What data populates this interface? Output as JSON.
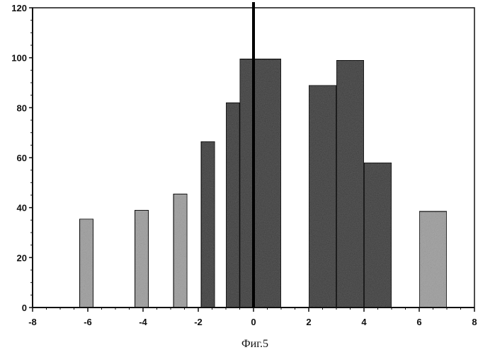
{
  "chart_data": {
    "type": "bar",
    "title": "",
    "xlabel": "",
    "ylabel": "",
    "xlim": [
      -8,
      8
    ],
    "ylim": [
      0,
      120
    ],
    "x_ticks": [
      -8,
      -6,
      -4,
      -2,
      0,
      2,
      4,
      6,
      8
    ],
    "y_ticks": [
      0,
      20,
      40,
      60,
      80,
      100,
      120
    ],
    "grid": false,
    "legend": "none",
    "series": [
      {
        "bars": [
          {
            "x_start": -6.3,
            "x_end": -5.8,
            "value": 35.5,
            "shade": "light"
          },
          {
            "x_start": -4.3,
            "x_end": -3.8,
            "value": 39,
            "shade": "light"
          },
          {
            "x_start": -2.9,
            "x_end": -2.4,
            "value": 45.5,
            "shade": "light"
          },
          {
            "x_start": -1.9,
            "x_end": -1.4,
            "value": 66.5,
            "shade": "dark"
          },
          {
            "x_start": -1.0,
            "x_end": -0.5,
            "value": 82,
            "shade": "dark"
          },
          {
            "x_start": -0.5,
            "x_end": 0.0,
            "value": 99.5,
            "shade": "dark"
          },
          {
            "x_start": 0.0,
            "x_end": 1.0,
            "value": 99.5,
            "shade": "dark"
          },
          {
            "x_start": 2.0,
            "x_end": 3.0,
            "value": 89,
            "shade": "dark"
          },
          {
            "x_start": 3.0,
            "x_end": 4.0,
            "value": 99,
            "shade": "dark"
          },
          {
            "x_start": 4.0,
            "x_end": 5.0,
            "value": 58,
            "shade": "dark"
          },
          {
            "x_start": 6.0,
            "x_end": 7.0,
            "value": 38.5,
            "shade": "light"
          }
        ]
      }
    ],
    "vertical_line_x": 0,
    "colors": {
      "dark_fill": "#5a5a5a",
      "light_fill": "#a8a8a8",
      "outline": "#111111",
      "axis": "#111111"
    }
  },
  "caption": "Фиг.5"
}
